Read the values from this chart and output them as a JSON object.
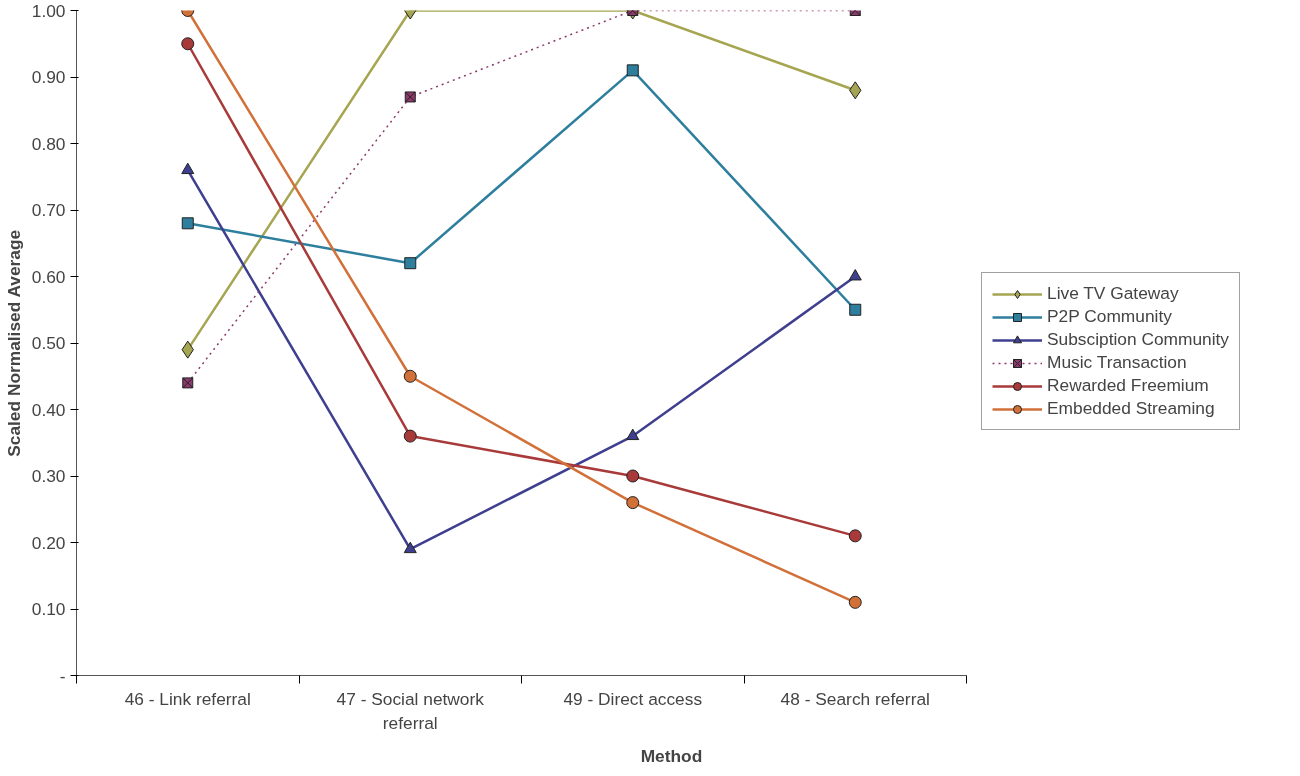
{
  "chart_data": {
    "type": "line",
    "xlabel": "Method",
    "ylabel": "Scaled Normalised Average",
    "categories": [
      "46 - Link referral",
      "47 - Social network referral",
      "49 - Direct access",
      "48 - Search referral"
    ],
    "series": [
      {
        "name": "Live TV Gateway",
        "color": "#a5a552",
        "marker": "diamond",
        "line_style": "solid",
        "values": [
          0.49,
          1.0,
          1.0,
          0.88
        ]
      },
      {
        "name": "P2P Community",
        "color": "#2e7f9e",
        "marker": "square",
        "line_style": "solid",
        "values": [
          0.68,
          0.62,
          0.91,
          0.55
        ]
      },
      {
        "name": "Subsciption Community",
        "color": "#3f3f8f",
        "marker": "triangle",
        "line_style": "solid",
        "values": [
          0.76,
          0.19,
          0.36,
          0.6
        ]
      },
      {
        "name": "Music Transaction",
        "color": "#8b3a6b",
        "marker": "cross",
        "line_style": "dotted",
        "values": [
          0.44,
          0.87,
          1.0,
          1.0
        ]
      },
      {
        "name": "Rewarded Freemium",
        "color": "#a83a3a",
        "marker": "circle",
        "line_style": "solid",
        "values": [
          0.95,
          0.36,
          0.3,
          0.21
        ]
      },
      {
        "name": "Embedded Streaming",
        "color": "#d2703a",
        "marker": "circle",
        "line_style": "solid",
        "values": [
          1.0,
          0.45,
          0.26,
          0.11
        ]
      }
    ],
    "ylim": [
      0,
      1
    ],
    "yticks": [
      {
        "value": 0,
        "label": "-"
      },
      {
        "value": 0.1,
        "label": "0.10"
      },
      {
        "value": 0.2,
        "label": "0.20"
      },
      {
        "value": 0.3,
        "label": "0.30"
      },
      {
        "value": 0.4,
        "label": "0.40"
      },
      {
        "value": 0.5,
        "label": "0.50"
      },
      {
        "value": 0.6,
        "label": "0.60"
      },
      {
        "value": 0.7,
        "label": "0.70"
      },
      {
        "value": 0.8,
        "label": "0.80"
      },
      {
        "value": 0.9,
        "label": "0.90"
      },
      {
        "value": 1.0,
        "label": "1.00"
      }
    ],
    "grid": false,
    "legend": "right"
  }
}
